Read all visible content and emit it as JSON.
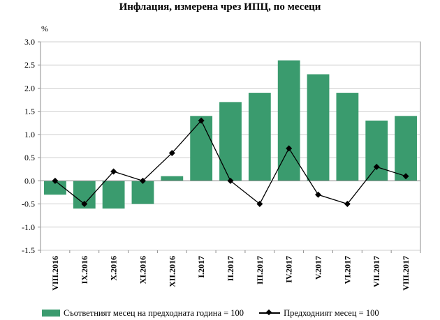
{
  "chart_data": {
    "type": "bar",
    "title": "Инфлация, измерена чрез ИПЦ, по месеци",
    "ylabel": "%",
    "ylim": [
      -1.5,
      3.0
    ],
    "yticks": [
      "3.0",
      "2.5",
      "2.0",
      "1.5",
      "1.0",
      "0.5",
      "0.0",
      "-0.5",
      "-1.0",
      "-1.5"
    ],
    "categories": [
      "VIII.2016",
      "IX.2016",
      "X.2016",
      "XI.2016",
      "XII.2016",
      "I.2017",
      "II.2017",
      "III.2017",
      "IV.2017",
      "V.2017",
      "VI.2017",
      "VII.2017",
      "VIII.2017"
    ],
    "series": [
      {
        "name": "Съответният месец на предходната година = 100",
        "type": "bar",
        "color": "#3a9b6e",
        "values": [
          -0.3,
          -0.6,
          -0.6,
          -0.5,
          0.1,
          1.4,
          1.7,
          1.9,
          2.6,
          2.3,
          1.9,
          1.3,
          1.4
        ]
      },
      {
        "name": "Предходният месец = 100",
        "type": "line",
        "color": "#000000",
        "marker": "diamond",
        "values": [
          0.0,
          -0.5,
          0.2,
          0.0,
          0.6,
          1.3,
          0.0,
          -0.5,
          0.7,
          -0.3,
          -0.5,
          0.3,
          0.1
        ]
      }
    ],
    "grid": true,
    "legend": "bottom"
  }
}
